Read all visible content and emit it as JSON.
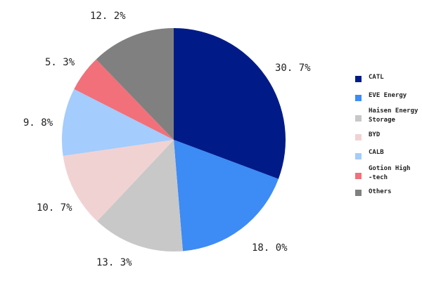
{
  "chart_data": {
    "type": "pie",
    "title": "",
    "start_angle_deg": 0,
    "direction": "clockwise",
    "legend_position": "right",
    "categories": [
      "CATL",
      "EVE Energy",
      "Haisen Energy Storage",
      "BYD",
      "CALB",
      "Gotion High-tech",
      "Others"
    ],
    "values": [
      30.7,
      18.0,
      13.3,
      10.7,
      9.8,
      5.3,
      12.2
    ],
    "labels": [
      "30.7%",
      "18.0%",
      "13.3%",
      "10.7%",
      "9.8%",
      "5.3%",
      "12.2%"
    ],
    "colors": [
      "#001b87",
      "#3d8bf5",
      "#c8c8c8",
      "#f1d2d2",
      "#a4ccfc",
      "#f1707a",
      "#808080"
    ]
  },
  "labels": {
    "catl": "30. 7%",
    "eve": "18. 0%",
    "haisen": "13. 3%",
    "byd": "10. 7%",
    "calb": "9. 8%",
    "gotion": "5. 3%",
    "others": "12. 2%"
  },
  "legend": {
    "items": [
      {
        "label": "CATL",
        "color": "#001b87"
      },
      {
        "label": "EVE Energy",
        "color": "#3d8bf5"
      },
      {
        "label": "Haisen Energy\nStorage",
        "color": "#c8c8c8"
      },
      {
        "label": "BYD",
        "color": "#f1d2d2"
      },
      {
        "label": "CALB",
        "color": "#a4ccfc"
      },
      {
        "label": "Gotion High\n-tech",
        "color": "#f1707a"
      },
      {
        "label": "Others",
        "color": "#808080"
      }
    ]
  }
}
